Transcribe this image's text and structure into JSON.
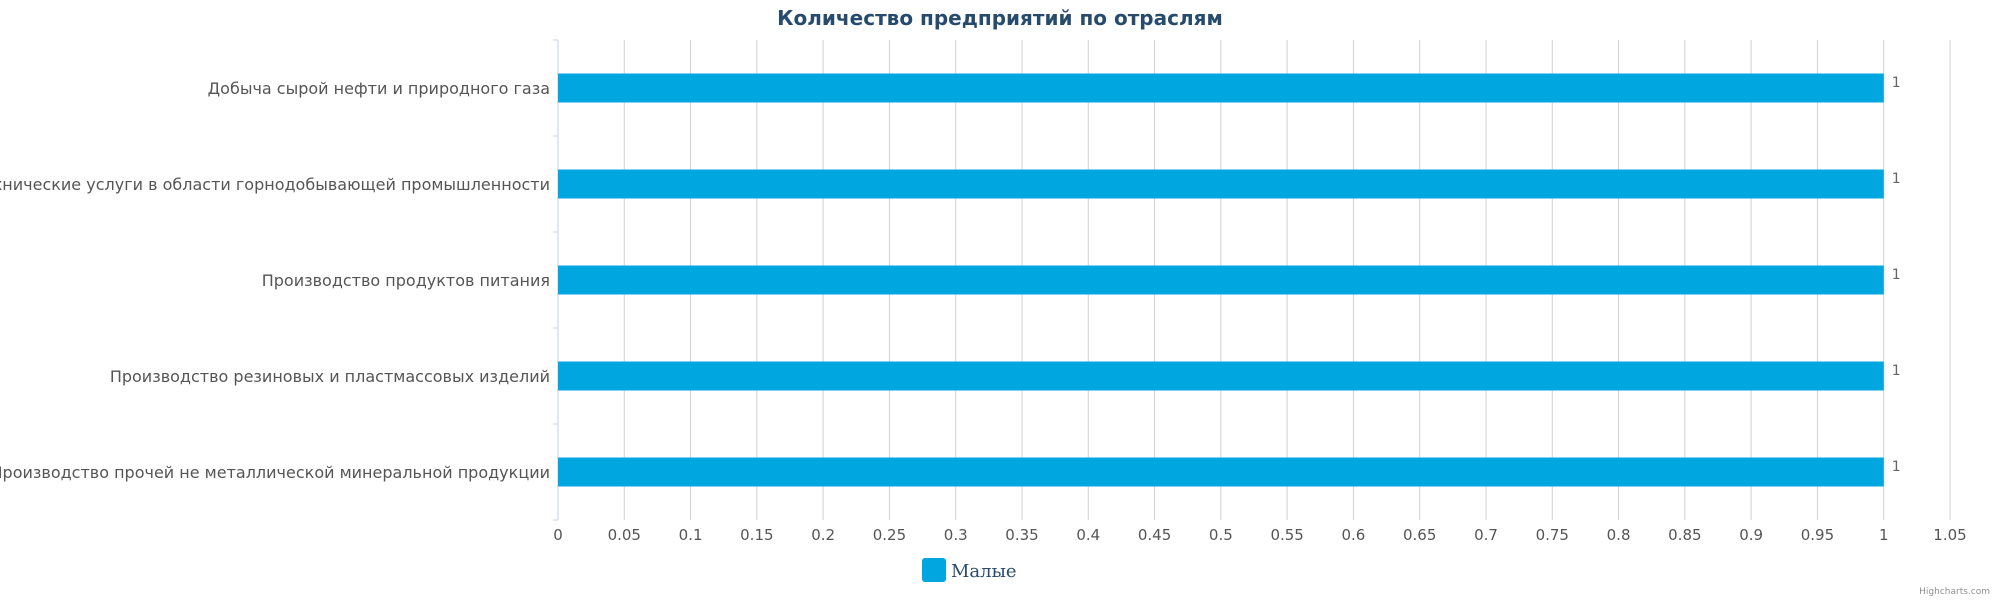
{
  "chart_data": {
    "type": "bar",
    "orientation": "horizontal",
    "title": "Количество предприятий по отраслям",
    "categories": [
      "Добыча сырой нефти и природного газа",
      "Технические услуги в области горнодобывающей промышленности",
      "Производство продуктов питания",
      "Производство резиновых и пластмассовых изделий",
      "Производство прочей не металлической минеральной продукции"
    ],
    "series": [
      {
        "name": "Малые",
        "values": [
          1,
          1,
          1,
          1,
          1
        ],
        "color": "#00a6e0"
      }
    ],
    "xlim": [
      0,
      1.05
    ],
    "ticks": [
      "0",
      "0.05",
      "0.1",
      "0.15",
      "0.2",
      "0.25",
      "0.3",
      "0.35",
      "0.4",
      "0.45",
      "0.5",
      "0.55",
      "0.6",
      "0.65",
      "0.7",
      "0.75",
      "0.8",
      "0.85",
      "0.9",
      "0.95",
      "1",
      "1.05"
    ],
    "data_labels": true,
    "grid": true,
    "legend_position": "bottom-center",
    "credits": "Highcharts.com"
  }
}
